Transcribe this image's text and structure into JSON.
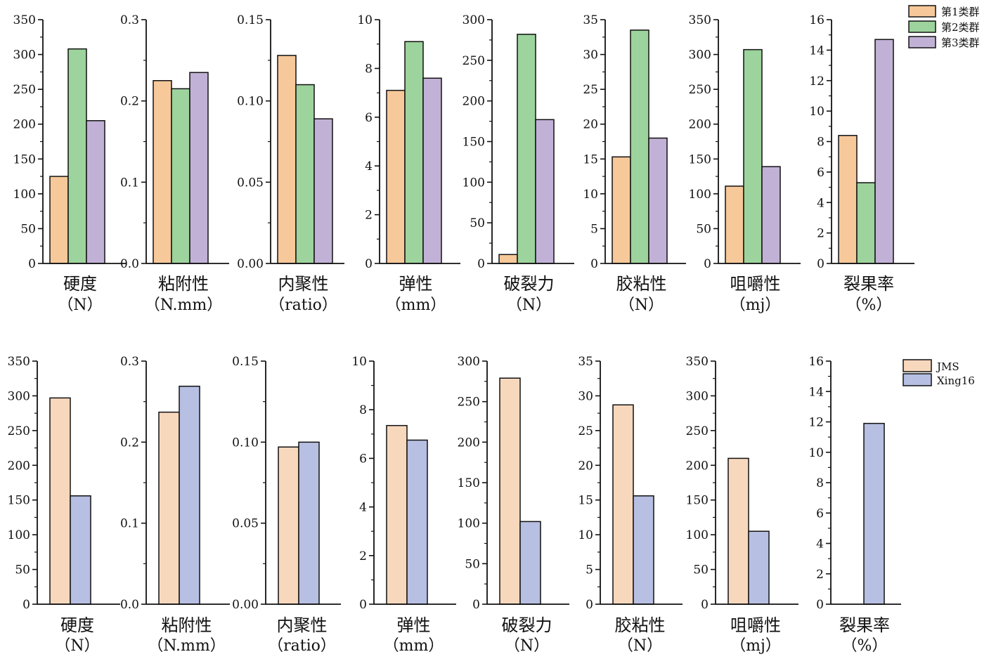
{
  "top": {
    "series": [
      {
        "name": "第1类群",
        "color": "#f6c89a"
      },
      {
        "name": "第2类群",
        "color": "#9dd39c"
      },
      {
        "name": "第3类群",
        "color": "#c2b1d6"
      }
    ]
  },
  "bottom": {
    "series": [
      {
        "name": "JMS",
        "color": "#f8d8bd"
      },
      {
        "name": "Xing16",
        "color": "#b7bfe2"
      }
    ]
  },
  "chart_data": [
    {
      "type": "bar",
      "xlabel": "硬度",
      "unit": "（N）",
      "ylim": [
        0,
        350
      ],
      "yticks": [
        "0",
        "50",
        "100",
        "150",
        "200",
        "250",
        "300",
        "350"
      ],
      "values": [
        125,
        308,
        205
      ]
    },
    {
      "type": "bar",
      "xlabel": "粘附性",
      "unit": "（N.mm）",
      "ylim": [
        0,
        0.3
      ],
      "yticks": [
        "0.0",
        "0.1",
        "0.2",
        "0.3"
      ],
      "values": [
        0.225,
        0.215,
        0.235
      ]
    },
    {
      "type": "bar",
      "xlabel": "内聚性",
      "unit": "（ratio）",
      "ylim": [
        0,
        0.15
      ],
      "yticks": [
        "0.00",
        "0.05",
        "0.10",
        "0.15"
      ],
      "values": [
        0.128,
        0.11,
        0.089
      ]
    },
    {
      "type": "bar",
      "xlabel": "弹性",
      "unit": "（mm）",
      "ylim": [
        0,
        10
      ],
      "yticks": [
        "0",
        "2",
        "4",
        "6",
        "8",
        "10"
      ],
      "values": [
        7.1,
        9.1,
        7.6
      ]
    },
    {
      "type": "bar",
      "xlabel": "破裂力",
      "unit": "（N）",
      "ylim": [
        0,
        300
      ],
      "yticks": [
        "0",
        "50",
        "100",
        "150",
        "200",
        "250",
        "300"
      ],
      "values": [
        11,
        282,
        177
      ]
    },
    {
      "type": "bar",
      "xlabel": "胶粘性",
      "unit": "（N）",
      "ylim": [
        0,
        35
      ],
      "yticks": [
        "0",
        "5",
        "10",
        "15",
        "20",
        "25",
        "30",
        "35"
      ],
      "values": [
        15.3,
        33.5,
        18
      ]
    },
    {
      "type": "bar",
      "xlabel": "咀嚼性",
      "unit": "（mj）",
      "ylim": [
        0,
        350
      ],
      "yticks": [
        "0",
        "50",
        "100",
        "150",
        "200",
        "250",
        "300",
        "350"
      ],
      "values": [
        111,
        307,
        139
      ]
    },
    {
      "type": "bar",
      "xlabel": "裂果率",
      "unit": "（%）",
      "ylim": [
        0,
        16
      ],
      "yticks": [
        "0",
        "2",
        "4",
        "6",
        "8",
        "10",
        "12",
        "14",
        "16"
      ],
      "values": [
        8.4,
        5.3,
        14.7
      ]
    },
    {
      "type": "bar",
      "xlabel": "硬度",
      "unit": "（N）",
      "ylim": [
        0,
        350
      ],
      "yticks": [
        "0",
        "50",
        "100",
        "150",
        "200",
        "250",
        "300",
        "350"
      ],
      "values": [
        297,
        156
      ]
    },
    {
      "type": "bar",
      "xlabel": "粘附性",
      "unit": "（N.mm）",
      "ylim": [
        0,
        0.3
      ],
      "yticks": [
        "0.0",
        "0.1",
        "0.2",
        "0.3"
      ],
      "values": [
        0.237,
        0.269
      ]
    },
    {
      "type": "bar",
      "xlabel": "内聚性",
      "unit": "（ratio）",
      "ylim": [
        0,
        0.15
      ],
      "yticks": [
        "0.00",
        "0.05",
        "0.10",
        "0.15"
      ],
      "values": [
        0.097,
        0.1
      ]
    },
    {
      "type": "bar",
      "xlabel": "弹性",
      "unit": "（mm）",
      "ylim": [
        0,
        10
      ],
      "yticks": [
        "0",
        "2",
        "4",
        "6",
        "8",
        "10"
      ],
      "values": [
        7.35,
        6.75
      ]
    },
    {
      "type": "bar",
      "xlabel": "破裂力",
      "unit": "（N）",
      "ylim": [
        0,
        300
      ],
      "yticks": [
        "0",
        "50",
        "100",
        "150",
        "200",
        "250",
        "300"
      ],
      "values": [
        279,
        102
      ]
    },
    {
      "type": "bar",
      "xlabel": "胶粘性",
      "unit": "（N）",
      "ylim": [
        0,
        35
      ],
      "yticks": [
        "0",
        "5",
        "10",
        "15",
        "20",
        "25",
        "30",
        "35"
      ],
      "values": [
        28.7,
        15.6
      ]
    },
    {
      "type": "bar",
      "xlabel": "咀嚼性",
      "unit": "（mj）",
      "ylim": [
        0,
        350
      ],
      "yticks": [
        "0",
        "50",
        "100",
        "150",
        "200",
        "250",
        "300",
        "350"
      ],
      "values": [
        210,
        105
      ]
    },
    {
      "type": "bar",
      "xlabel": "裂果率",
      "unit": "（%）",
      "ylim": [
        0,
        16
      ],
      "yticks": [
        "0",
        "2",
        "4",
        "6",
        "8",
        "10",
        "12",
        "14",
        "16"
      ],
      "values": [
        0,
        11.9
      ]
    }
  ]
}
